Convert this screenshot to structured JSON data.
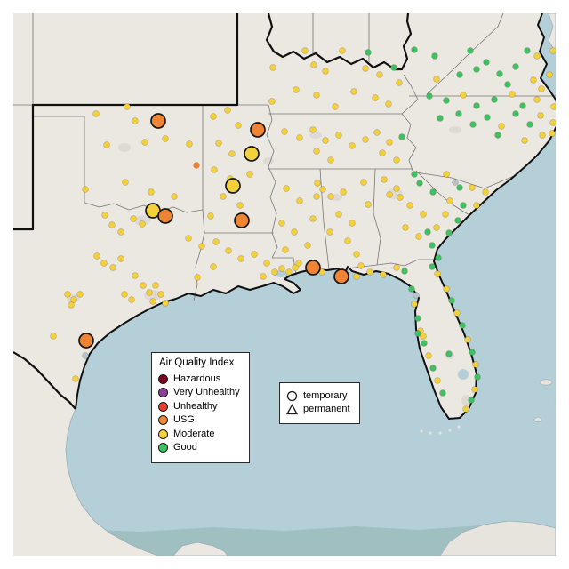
{
  "legend_aqi": {
    "title": "Air Quality Index",
    "items": [
      {
        "label": "Hazardous",
        "color": "#7e0023"
      },
      {
        "label": "Very Unhealthy",
        "color": "#8f3f97"
      },
      {
        "label": "Unhealthy",
        "color": "#ea3c2e"
      },
      {
        "label": "USG",
        "color": "#ee8434"
      },
      {
        "label": "Moderate",
        "color": "#f4d03a"
      },
      {
        "label": "Good",
        "color": "#3fc163"
      }
    ]
  },
  "legend_markers": {
    "items": [
      {
        "label": "temporary",
        "shape": "circle"
      },
      {
        "label": "permanent",
        "shape": "triangle"
      }
    ]
  },
  "map_colors": {
    "water": "#b5cfd8",
    "deep_water": "#a0bfc1",
    "land": "#ebe7e1",
    "urban_patch": "#ded9d4",
    "state_border": "#777777",
    "region_border": "#101010"
  },
  "chart_data": {
    "type": "scatter",
    "point_format": [
      "x",
      "y",
      "category_code"
    ],
    "category_codes": {
      "m": "moderate",
      "g": "good",
      "u": "usg",
      "x": "unknown"
    },
    "category_colors": {
      "moderate": "#f4d03a",
      "good": "#3fc163",
      "usg": "#ee8434",
      "unknown": "#b9c4ca"
    },
    "marker_radius_station": 3.4,
    "marker_radius_event": 8,
    "stations": [
      [
        307,
        76,
        "m"
      ],
      [
        306,
        114,
        "m"
      ],
      [
        343,
        57,
        "m"
      ],
      [
        385,
        57,
        "m"
      ],
      [
        353,
        73,
        "m"
      ],
      [
        366,
        80,
        "m"
      ],
      [
        411,
        77,
        "m"
      ],
      [
        427,
        84,
        "m"
      ],
      [
        398,
        103,
        "m"
      ],
      [
        422,
        110,
        "m"
      ],
      [
        437,
        117,
        "m"
      ],
      [
        356,
        107,
        "m"
      ],
      [
        333,
        101,
        "m"
      ],
      [
        377,
        120,
        "m"
      ],
      [
        449,
        93,
        "m"
      ],
      [
        414,
        59,
        "g"
      ],
      [
        466,
        56,
        "g"
      ],
      [
        489,
        63,
        "g"
      ],
      [
        529,
        57,
        "g"
      ],
      [
        593,
        57,
        "g"
      ],
      [
        604,
        63,
        "m"
      ],
      [
        622,
        57,
        "m"
      ],
      [
        517,
        84,
        "g"
      ],
      [
        536,
        78,
        "g"
      ],
      [
        562,
        83,
        "g"
      ],
      [
        571,
        95,
        "g"
      ],
      [
        600,
        90,
        "m"
      ],
      [
        609,
        100,
        "m"
      ],
      [
        618,
        84,
        "m"
      ],
      [
        443,
        76,
        "g"
      ],
      [
        491,
        89,
        "m"
      ],
      [
        547,
        70,
        "g"
      ],
      [
        580,
        75,
        "g"
      ],
      [
        483,
        108,
        "g"
      ],
      [
        502,
        113,
        "g"
      ],
      [
        521,
        107,
        "m"
      ],
      [
        536,
        119,
        "g"
      ],
      [
        556,
        112,
        "g"
      ],
      [
        576,
        106,
        "m"
      ],
      [
        588,
        119,
        "g"
      ],
      [
        604,
        112,
        "m"
      ],
      [
        623,
        120,
        "m"
      ],
      [
        495,
        133,
        "g"
      ],
      [
        516,
        128,
        "g"
      ],
      [
        532,
        140,
        "g"
      ],
      [
        548,
        132,
        "g"
      ],
      [
        564,
        142,
        "m"
      ],
      [
        580,
        128,
        "g"
      ],
      [
        596,
        140,
        "g"
      ],
      [
        608,
        130,
        "m"
      ],
      [
        622,
        138,
        "m"
      ],
      [
        621,
        150,
        "m"
      ],
      [
        610,
        152,
        "m"
      ],
      [
        560,
        152,
        "g"
      ],
      [
        590,
        158,
        "m"
      ],
      [
        320,
        148,
        "m"
      ],
      [
        337,
        155,
        "m"
      ],
      [
        352,
        146,
        "m"
      ],
      [
        366,
        158,
        "m"
      ],
      [
        381,
        152,
        "m"
      ],
      [
        356,
        170,
        "m"
      ],
      [
        372,
        180,
        "m"
      ],
      [
        396,
        164,
        "m"
      ],
      [
        411,
        157,
        "m"
      ],
      [
        424,
        149,
        "m"
      ],
      [
        438,
        160,
        "m"
      ],
      [
        452,
        154,
        "g"
      ],
      [
        430,
        172,
        "m"
      ],
      [
        446,
        180,
        "m"
      ],
      [
        240,
        131,
        "m"
      ],
      [
        256,
        124,
        "m"
      ],
      [
        268,
        141,
        "m"
      ],
      [
        246,
        161,
        "m"
      ],
      [
        261,
        173,
        "m"
      ],
      [
        241,
        191,
        "m"
      ],
      [
        259,
        201,
        "m"
      ],
      [
        281,
        196,
        "m"
      ],
      [
        251,
        221,
        "m"
      ],
      [
        270,
        231,
        "m"
      ],
      [
        237,
        243,
        "m"
      ],
      [
        221,
        186,
        "u"
      ],
      [
        108,
        128,
        "m"
      ],
      [
        143,
        120,
        "m"
      ],
      [
        152,
        136,
        "m"
      ],
      [
        120,
        163,
        "m"
      ],
      [
        163,
        160,
        "m"
      ],
      [
        186,
        156,
        "m"
      ],
      [
        96,
        213,
        "m"
      ],
      [
        141,
        205,
        "m"
      ],
      [
        170,
        216,
        "m"
      ],
      [
        196,
        221,
        "m"
      ],
      [
        213,
        162,
        "m"
      ],
      [
        118,
        242,
        "m"
      ],
      [
        126,
        253,
        "m"
      ],
      [
        136,
        261,
        "m"
      ],
      [
        150,
        246,
        "m"
      ],
      [
        160,
        252,
        "m"
      ],
      [
        109,
        288,
        "m"
      ],
      [
        117,
        296,
        "m"
      ],
      [
        127,
        301,
        "m"
      ],
      [
        136,
        291,
        "m"
      ],
      [
        76,
        331,
        "m"
      ],
      [
        83,
        337,
        "m"
      ],
      [
        90,
        331,
        "m"
      ],
      [
        80,
        343,
        "m"
      ],
      [
        140,
        331,
        "m"
      ],
      [
        148,
        337,
        "m"
      ],
      [
        161,
        321,
        "m"
      ],
      [
        168,
        329,
        "m"
      ],
      [
        175,
        321,
        "m"
      ],
      [
        181,
        331,
        "m"
      ],
      [
        172,
        339,
        "m"
      ],
      [
        186,
        341,
        "m"
      ],
      [
        60,
        378,
        "m"
      ],
      [
        96,
        400,
        "x"
      ],
      [
        85,
        426,
        "m"
      ],
      [
        152,
        310,
        "m"
      ],
      [
        212,
        268,
        "m"
      ],
      [
        227,
        277,
        "m"
      ],
      [
        243,
        272,
        "m"
      ],
      [
        257,
        282,
        "m"
      ],
      [
        271,
        291,
        "m"
      ],
      [
        286,
        286,
        "m"
      ],
      [
        300,
        296,
        "m"
      ],
      [
        309,
        306,
        "m"
      ],
      [
        296,
        311,
        "m"
      ],
      [
        317,
        302,
        "m"
      ],
      [
        325,
        306,
        "m"
      ],
      [
        332,
        301,
        "m"
      ],
      [
        240,
        300,
        "m"
      ],
      [
        222,
        312,
        "m"
      ],
      [
        322,
        212,
        "m"
      ],
      [
        337,
        226,
        "m"
      ],
      [
        317,
        251,
        "m"
      ],
      [
        331,
        261,
        "m"
      ],
      [
        346,
        276,
        "m"
      ],
      [
        321,
        281,
        "m"
      ],
      [
        336,
        296,
        "m"
      ],
      [
        352,
        246,
        "m"
      ],
      [
        356,
        221,
        "m"
      ],
      [
        357,
        206,
        "m"
      ],
      [
        363,
        213,
        "m"
      ],
      [
        372,
        221,
        "m"
      ],
      [
        386,
        216,
        "m"
      ],
      [
        381,
        241,
        "m"
      ],
      [
        396,
        251,
        "m"
      ],
      [
        371,
        261,
        "m"
      ],
      [
        391,
        271,
        "m"
      ],
      [
        401,
        286,
        "m"
      ],
      [
        406,
        299,
        "m"
      ],
      [
        414,
        230,
        "m"
      ],
      [
        409,
        205,
        "m"
      ],
      [
        432,
        202,
        "m"
      ],
      [
        446,
        212,
        "m"
      ],
      [
        438,
        219,
        "m"
      ],
      [
        450,
        222,
        "m"
      ],
      [
        461,
        231,
        "m"
      ],
      [
        476,
        241,
        "m"
      ],
      [
        456,
        256,
        "m"
      ],
      [
        471,
        266,
        "m"
      ],
      [
        486,
        276,
        "g"
      ],
      [
        491,
        256,
        "m"
      ],
      [
        501,
        241,
        "m"
      ],
      [
        466,
        196,
        "g"
      ],
      [
        481,
        261,
        "g"
      ],
      [
        493,
        290,
        "g"
      ],
      [
        505,
        262,
        "g"
      ],
      [
        515,
        248,
        "g"
      ],
      [
        472,
        206,
        "g"
      ],
      [
        487,
        216,
        "g"
      ],
      [
        502,
        196,
        "m"
      ],
      [
        517,
        211,
        "g"
      ],
      [
        521,
        231,
        "g"
      ],
      [
        531,
        211,
        "m"
      ],
      [
        546,
        216,
        "m"
      ],
      [
        506,
        226,
        "m"
      ],
      [
        536,
        231,
        "m"
      ],
      [
        512,
        205,
        "x"
      ],
      [
        362,
        306,
        "m"
      ],
      [
        401,
        311,
        "m"
      ],
      [
        416,
        306,
        "m"
      ],
      [
        431,
        309,
        "m"
      ],
      [
        446,
        301,
        "m"
      ],
      [
        455,
        305,
        "g"
      ],
      [
        486,
        300,
        "g"
      ],
      [
        492,
        308,
        "m"
      ],
      [
        502,
        325,
        "m"
      ],
      [
        508,
        338,
        "g"
      ],
      [
        514,
        352,
        "m"
      ],
      [
        520,
        366,
        "g"
      ],
      [
        526,
        382,
        "m"
      ],
      [
        531,
        396,
        "g"
      ],
      [
        535,
        410,
        "m"
      ],
      [
        537,
        424,
        "g"
      ],
      [
        534,
        438,
        "m"
      ],
      [
        530,
        450,
        "g"
      ],
      [
        524,
        460,
        "m"
      ],
      [
        463,
        325,
        "g"
      ],
      [
        468,
        332,
        "x"
      ],
      [
        466,
        342,
        "m"
      ],
      [
        470,
        358,
        "g"
      ],
      [
        473,
        372,
        "m"
      ],
      [
        477,
        386,
        "g"
      ],
      [
        482,
        400,
        "m"
      ],
      [
        487,
        414,
        "g"
      ],
      [
        492,
        428,
        "m"
      ],
      [
        498,
        442,
        "g"
      ],
      [
        505,
        398,
        "g"
      ],
      [
        470,
        375,
        "g"
      ],
      [
        476,
        378,
        "m"
      ]
    ],
    "events": [
      [
        178,
        136,
        "u"
      ],
      [
        290,
        146,
        "u"
      ],
      [
        283,
        173,
        "m"
      ],
      [
        262,
        209,
        "m"
      ],
      [
        172,
        237,
        "m"
      ],
      [
        186,
        243,
        "u"
      ],
      [
        272,
        248,
        "u"
      ],
      [
        352,
        301,
        "u"
      ],
      [
        384,
        311,
        "u"
      ],
      [
        97,
        383,
        "u"
      ]
    ]
  }
}
